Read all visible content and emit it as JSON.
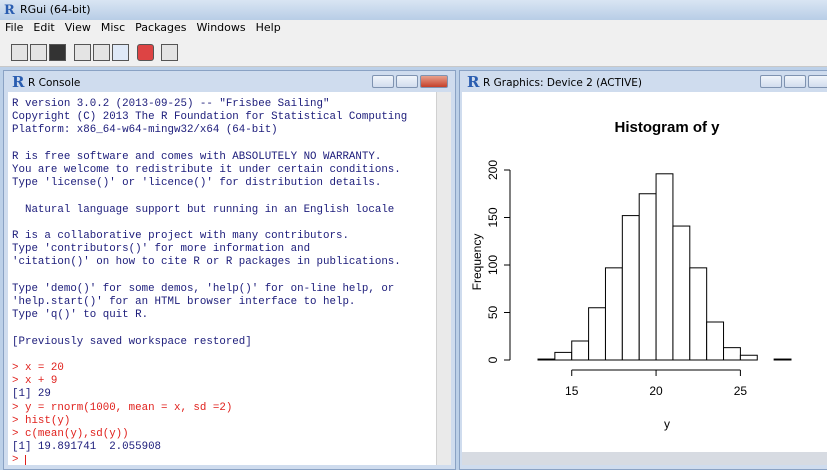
{
  "app": {
    "title": "RGui (64-bit)",
    "menu": [
      "File",
      "Edit",
      "View",
      "Misc",
      "Packages",
      "Windows",
      "Help"
    ]
  },
  "console": {
    "title": "R Console",
    "blocks": [
      {
        "color": "#1b1b7a",
        "lines": [
          "R version 3.0.2 (2013-09-25) -- \"Frisbee Sailing\"",
          "Copyright (C) 2013 The R Foundation for Statistical Computing",
          "Platform: x86_64-w64-mingw32/x64 (64-bit)"
        ]
      },
      {
        "color": "#1b1b7a",
        "lines": [
          "R is free software and comes with ABSOLUTELY NO WARRANTY.",
          "You are welcome to redistribute it under certain conditions.",
          "Type 'license()' or 'licence()' for distribution details."
        ]
      },
      {
        "color": "#1b1b7a",
        "lines": [
          "  Natural language support but running in an English locale"
        ]
      },
      {
        "color": "#1b1b7a",
        "lines": [
          "R is a collaborative project with many contributors.",
          "Type 'contributors()' for more information and",
          "'citation()' on how to cite R or R packages in publications."
        ]
      },
      {
        "color": "#1b1b7a",
        "lines": [
          "Type 'demo()' for some demos, 'help()' for on-line help, or",
          "'help.start()' for an HTML browser interface to help.",
          "Type 'q()' to quit R."
        ]
      },
      {
        "color": "#1b1b7a",
        "lines": [
          "[Previously saved workspace restored]"
        ]
      }
    ],
    "session": [
      {
        "color": "#e0201c",
        "text": "> x = 20"
      },
      {
        "color": "#e0201c",
        "text": "> x + 9"
      },
      {
        "color": "#1b1b7a",
        "text": "[1] 29"
      },
      {
        "color": "#e0201c",
        "text": "> y = rnorm(1000, mean = x, sd =2)"
      },
      {
        "color": "#e0201c",
        "text": "> hist(y)"
      },
      {
        "color": "#e0201c",
        "text": "> c(mean(y),sd(y))"
      },
      {
        "color": "#1b1b7a",
        "text": "[1] 19.891741  2.055908"
      },
      {
        "color": "#e0201c",
        "text": ">"
      }
    ]
  },
  "graphics": {
    "title": "R Graphics: Device 2 (ACTIVE)"
  },
  "chart_data": {
    "type": "histogram",
    "title": "Histogram of y",
    "x_label": "y",
    "y_label": "Frequency",
    "bins": [
      13,
      14,
      15,
      16,
      17,
      18,
      19,
      20,
      21,
      22,
      23,
      24,
      25,
      26,
      27,
      28
    ],
    "values": [
      1,
      8,
      20,
      55,
      97,
      152,
      175,
      196,
      141,
      97,
      40,
      13,
      5,
      0,
      1
    ],
    "xlim": [
      13,
      28
    ],
    "ylim": [
      0,
      200
    ],
    "xticks": [
      15,
      20,
      25
    ],
    "yticks": [
      0,
      50,
      100,
      150,
      200
    ],
    "color": "#ffffff"
  }
}
